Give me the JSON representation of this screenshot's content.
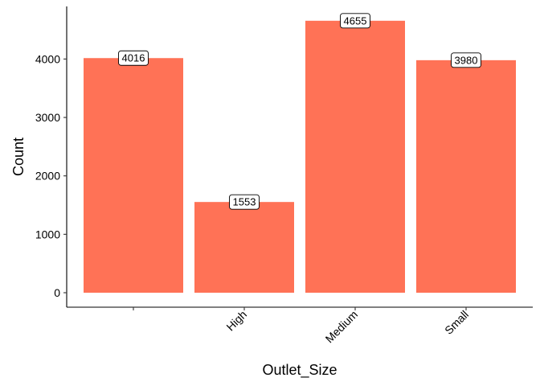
{
  "chart_data": {
    "type": "bar",
    "title": "",
    "xlabel": "Outlet_Size",
    "ylabel": "Count",
    "categories": [
      "",
      "High",
      "Medium",
      "Small"
    ],
    "values": [
      4016,
      1553,
      4655,
      3980
    ],
    "data_labels": [
      "4016",
      "1553",
      "4655",
      "3980"
    ],
    "ylim": [
      0,
      4900
    ],
    "y_ticks": [
      0,
      1000,
      2000,
      3000,
      4000
    ],
    "y_tick_labels": [
      "0",
      "1000",
      "2000",
      "3000",
      "4000"
    ],
    "grid": false,
    "legend": "none",
    "bar_color": "#FF7256",
    "x_tick_label_rotation": "45 degrees"
  }
}
